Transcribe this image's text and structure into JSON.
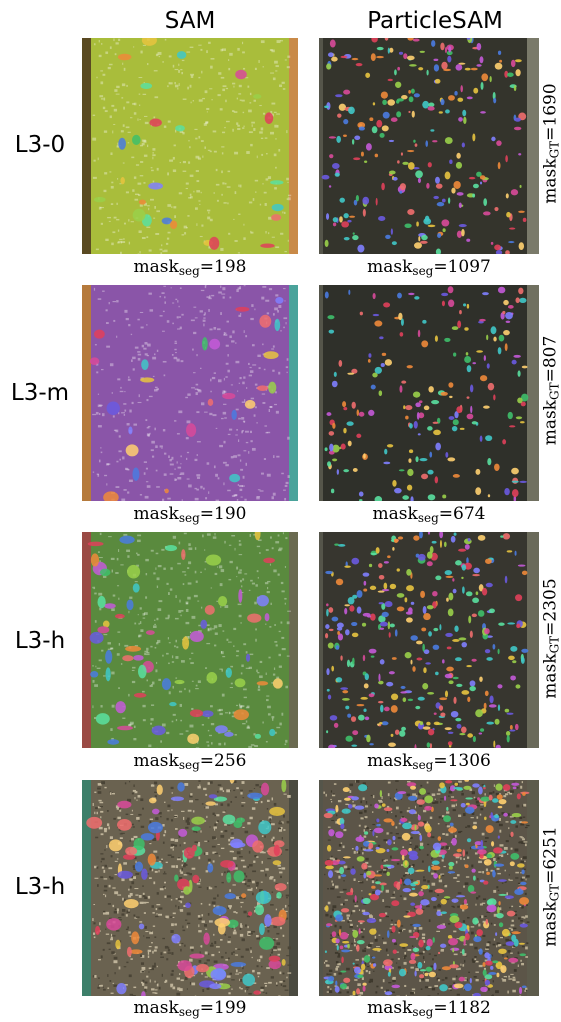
{
  "columns": {
    "sam": "SAM",
    "particlesam": "ParticleSAM"
  },
  "caption_parts": {
    "mask": "mask",
    "seg_sub": "seg",
    "gt_sub": "GT",
    "eq": "="
  },
  "colors": {
    "sam_rows": [
      "#a9bd3b",
      "#8a55a8",
      "#5a8a3e",
      "#6a6250"
    ],
    "sam_left_strip": [
      "#5a4a22",
      "#b57a3c",
      "#9a4a44",
      "#3d7f6a"
    ],
    "sam_right_strip": [
      "#c98a48",
      "#4aa39b",
      "#6a6a50",
      "#4a4a40"
    ],
    "psam_bg": [
      "#34342c",
      "#2f302a",
      "#37362f",
      "#5c5548"
    ],
    "psam_right_strip": [
      "#7a7a6a",
      "#707060",
      "#6a6a5a",
      "#5d5b4c"
    ]
  },
  "rows": [
    {
      "label": "L3-0",
      "sam_seg": "198",
      "psam_seg": "1097",
      "gt": "1690"
    },
    {
      "label": "L3-m",
      "sam_seg": "190",
      "psam_seg": "674",
      "gt": "807"
    },
    {
      "label": "L3-h",
      "sam_seg": "256",
      "psam_seg": "1306",
      "gt": "2305"
    },
    {
      "label": "L3-h",
      "sam_seg": "199",
      "psam_seg": "1182",
      "gt": "6251"
    }
  ]
}
